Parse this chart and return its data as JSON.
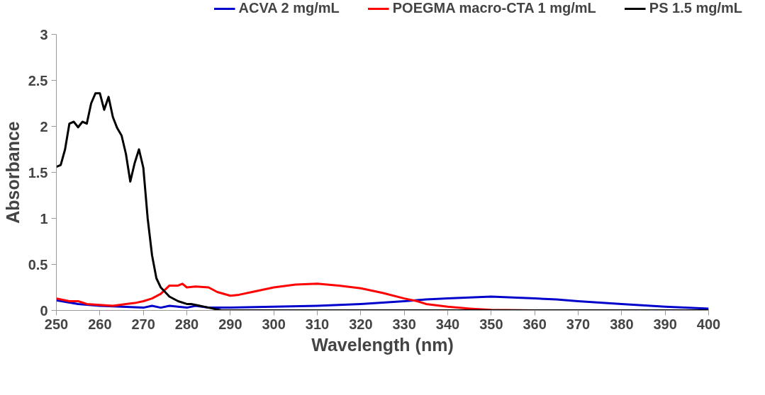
{
  "chart_data": {
    "type": "line",
    "xlabel": "Wavelength (nm)",
    "ylabel": "Absorbance",
    "xlim": [
      250,
      400
    ],
    "xticks": [
      250,
      260,
      270,
      280,
      290,
      300,
      310,
      320,
      330,
      340,
      350,
      360,
      370,
      380,
      390,
      400
    ],
    "ylim": [
      0,
      3
    ],
    "yticks": [
      0,
      0.5,
      1,
      1.5,
      2,
      2.5,
      3
    ],
    "grid": false,
    "legend": "top",
    "marker": "none",
    "line_style": "solid",
    "series": [
      {
        "name": "ACVA 2 mg/mL",
        "color": "#0000cc",
        "x": [
          250,
          255,
          260,
          265,
          270,
          272,
          274,
          276,
          280,
          282,
          285,
          290,
          300,
          310,
          320,
          330,
          335,
          340,
          345,
          350,
          355,
          360,
          365,
          370,
          380,
          390,
          400
        ],
        "values": [
          0.11,
          0.07,
          0.05,
          0.04,
          0.03,
          0.05,
          0.03,
          0.05,
          0.03,
          0.05,
          0.03,
          0.03,
          0.04,
          0.05,
          0.07,
          0.1,
          0.12,
          0.13,
          0.14,
          0.15,
          0.14,
          0.13,
          0.12,
          0.1,
          0.07,
          0.04,
          0.02
        ]
      },
      {
        "name": "POEGMA macro-CTA 1 mg/mL",
        "color": "#ff0000",
        "x": [
          250,
          253,
          255,
          257,
          260,
          263,
          266,
          268,
          270,
          272,
          274,
          276,
          278,
          279,
          280,
          282,
          285,
          287,
          290,
          292,
          295,
          300,
          305,
          310,
          315,
          320,
          325,
          330,
          333,
          335,
          340,
          345,
          350,
          360,
          400
        ],
        "values": [
          0.13,
          0.1,
          0.1,
          0.07,
          0.06,
          0.05,
          0.07,
          0.08,
          0.1,
          0.13,
          0.18,
          0.27,
          0.27,
          0.29,
          0.25,
          0.26,
          0.25,
          0.2,
          0.16,
          0.17,
          0.2,
          0.25,
          0.28,
          0.29,
          0.27,
          0.24,
          0.19,
          0.13,
          0.1,
          0.07,
          0.04,
          0.02,
          0.005,
          0.0,
          0.0
        ]
      },
      {
        "name": "PS 1.5 mg/mL",
        "color": "#000000",
        "x": [
          250,
          251,
          252,
          253,
          254,
          255,
          256,
          257,
          258,
          259,
          260,
          261,
          262,
          263,
          264,
          265,
          266,
          267,
          268,
          269,
          270,
          271,
          272,
          273,
          274,
          275,
          276,
          278,
          280,
          281,
          283,
          285,
          288,
          400
        ],
        "values": [
          1.56,
          1.58,
          1.75,
          2.03,
          2.05,
          1.99,
          2.05,
          2.03,
          2.25,
          2.36,
          2.36,
          2.18,
          2.32,
          2.1,
          1.98,
          1.9,
          1.7,
          1.4,
          1.6,
          1.75,
          1.55,
          1.0,
          0.6,
          0.35,
          0.25,
          0.2,
          0.15,
          0.1,
          0.07,
          0.07,
          0.05,
          0.03,
          0.0,
          0.0
        ]
      }
    ]
  }
}
